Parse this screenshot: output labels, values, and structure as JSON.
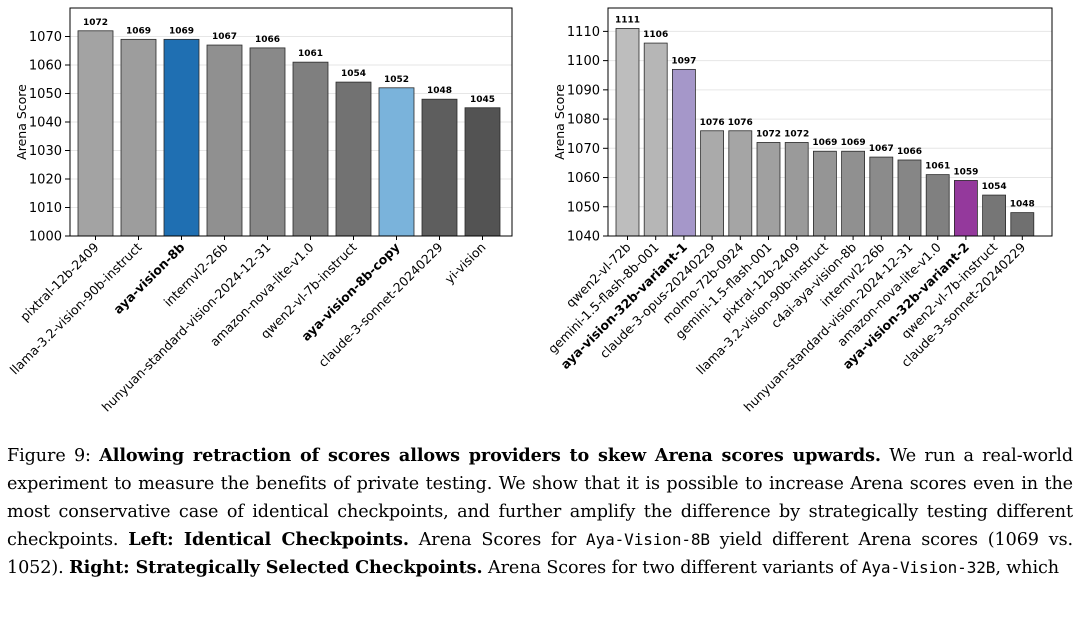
{
  "chart_data": [
    {
      "type": "bar",
      "ylabel": "Arena Score",
      "ylim": [
        1000,
        1080
      ],
      "yticks": [
        1000,
        1010,
        1020,
        1030,
        1040,
        1050,
        1060,
        1070
      ],
      "grid": "y",
      "categories": [
        "pixtral-12b-2409",
        "llama-3.2-vision-90b-instruct",
        "aya-vision-8b",
        "internvl2-26b",
        "hunyuan-standard-vision-2024-12-31",
        "amazon-nova-lite-v1.0",
        "qwen2-vl-7b-instruct",
        "aya-vision-8b-copy",
        "claude-3-sonnet-20240229",
        "yi-vision"
      ],
      "values": [
        1072,
        1069,
        1069,
        1067,
        1066,
        1061,
        1054,
        1052,
        1048,
        1045
      ],
      "bold_labels": [
        "aya-vision-8b",
        "aya-vision-8b-copy"
      ],
      "colors": [
        "#a3a3a3",
        "#9d9d9d",
        "#1f6fb2",
        "#909090",
        "#898989",
        "#7f7f7f",
        "#727272",
        "#7ab3db",
        "#5e5e5e",
        "#535353"
      ]
    },
    {
      "type": "bar",
      "ylabel": "Arena Score",
      "ylim": [
        1040,
        1118
      ],
      "yticks": [
        1040,
        1050,
        1060,
        1070,
        1080,
        1090,
        1100,
        1110
      ],
      "grid": "y",
      "categories": [
        "qwen2-vl-72b",
        "gemini-1.5-flash-8b-001",
        "aya-vision-32b-variant-1",
        "claude-3-opus-20240229",
        "molmo-72b-0924",
        "gemini-1.5-flash-001",
        "pixtral-12b-2409",
        "llama-3.2-vision-90b-instruct",
        "c4ai-aya-vision-8b",
        "internvl2-26b",
        "hunyuan-standard-vision-2024-12-31",
        "amazon-nova-lite-v1.0",
        "aya-vision-32b-variant-2",
        "qwen2-vl-7b-instruct",
        "claude-3-sonnet-20240229"
      ],
      "values": [
        1111,
        1106,
        1097,
        1076,
        1076,
        1072,
        1072,
        1069,
        1069,
        1067,
        1066,
        1061,
        1059,
        1054,
        1048
      ],
      "bold_labels": [
        "aya-vision-32b-variant-1",
        "aya-vision-32b-variant-2"
      ],
      "colors": [
        "#bdbdbd",
        "#b6b6b6",
        "#a597c9",
        "#aaaaaa",
        "#a5a5a5",
        "#a0a0a0",
        "#9a9a9a",
        "#959595",
        "#909090",
        "#8b8b8b",
        "#868686",
        "#808080",
        "#94399c",
        "#767676",
        "#707070"
      ]
    }
  ],
  "caption": {
    "fig_label": "Figure 9: ",
    "bold_title": "Allowing retraction of scores allows providers to skew Arena scores upwards.",
    "text1": " We run a real-world experiment to measure the benefits of private testing. We show that it is possible to increase Arena scores even in the most conservative case of identical checkpoints, and further amplify the difference by strategically testing different checkpoints. ",
    "bold_left": "Left: Identical Checkpoints.",
    "text2": " Arena Scores for ",
    "mono1": "Aya-Vision-8B",
    "text3": " yield different Arena scores (1069 vs. 1052). ",
    "bold_right": "Right: Strategically Selected Checkpoints.",
    "text4": " Arena Scores for two different variants of ",
    "mono2": "Aya-Vision-32B",
    "text5": ", which"
  }
}
